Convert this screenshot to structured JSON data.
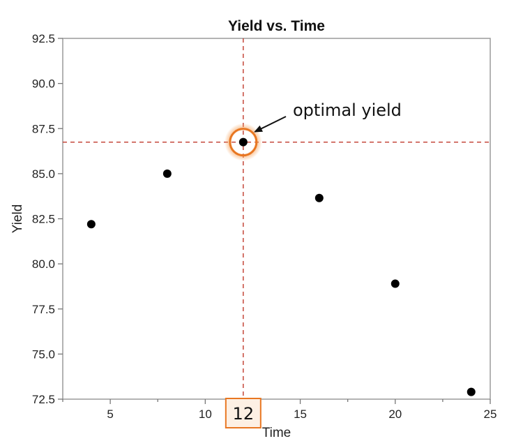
{
  "chart_data": {
    "type": "scatter",
    "title": "Yield vs. Time",
    "xlabel": "Time",
    "ylabel": "Yield",
    "xlim": [
      2.5,
      25
    ],
    "ylim": [
      72.5,
      92.5
    ],
    "x_ticks": [
      5,
      10,
      15,
      20,
      25
    ],
    "y_ticks": [
      72.5,
      75.0,
      77.5,
      80.0,
      82.5,
      85.0,
      87.5,
      90.0,
      92.5
    ],
    "y_tick_labels": [
      "72.5",
      "75.0",
      "77.5",
      "80.0",
      "82.5",
      "85.0",
      "87.5",
      "90.0",
      "92.5"
    ],
    "grid": false,
    "points": [
      {
        "x": 4,
        "y": 82.2
      },
      {
        "x": 8,
        "y": 85.0
      },
      {
        "x": 12,
        "y": 86.75
      },
      {
        "x": 16,
        "y": 83.65
      },
      {
        "x": 20,
        "y": 78.9
      },
      {
        "x": 24,
        "y": 72.9
      }
    ],
    "highlight": {
      "x": 12,
      "y": 86.75,
      "annotation": "optimal yield",
      "x_label": "12",
      "color": "#e87722",
      "guide_color": "#c0392b"
    }
  }
}
